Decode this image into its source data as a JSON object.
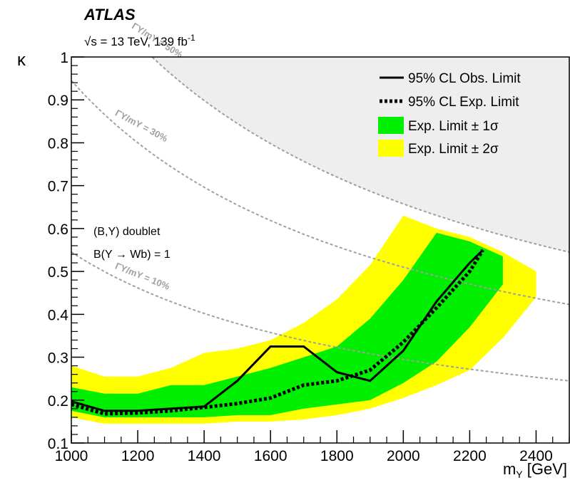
{
  "header": {
    "experiment": "ATLAS",
    "energy_prefix": "√s = 13 TeV, 139 fb",
    "energy_sup": "-1"
  },
  "notes": {
    "line1": "(B,Y) doublet",
    "line2": "B(Y → Wb) = 1"
  },
  "colors": {
    "band_1sigma": "#00ee00",
    "band_2sigma": "#ffff00",
    "excluded_region": "#eeeeee",
    "width_curves": "#a0a0a0"
  },
  "chart_data": {
    "type": "line",
    "xlabel": "m",
    "xlabel_sub": "Y",
    "xlabel_unit": " [GeV]",
    "ylabel": "κ",
    "xlim": [
      1000,
      2500
    ],
    "ylim": [
      0.1,
      1.0
    ],
    "x_ticks": [
      1000,
      1200,
      1400,
      1600,
      1800,
      2000,
      2200,
      2400
    ],
    "x_tick_labels": [
      "1000",
      "1200",
      "1400",
      "1600",
      "1800",
      "2000",
      "2200",
      "2400"
    ],
    "y_ticks": [
      0.1,
      0.2,
      0.3,
      0.4,
      0.5,
      0.6,
      0.7,
      0.8,
      0.9,
      1.0
    ],
    "y_tick_labels": [
      "0.1",
      "0.2",
      "0.3",
      "0.4",
      "0.5",
      "0.6",
      "0.7",
      "0.8",
      "0.9",
      "1"
    ],
    "legend_position": "top-right",
    "legend": [
      {
        "label": "95% CL Obs. Limit",
        "style": "solid-line"
      },
      {
        "label": "95% CL Exp. Limit",
        "style": "dotted-line"
      },
      {
        "label": "Exp. Limit ± 1σ",
        "style": "green-box"
      },
      {
        "label": "Exp. Limit ± 2σ",
        "style": "yellow-box"
      }
    ],
    "observed": {
      "x": [
        1000,
        1100,
        1200,
        1300,
        1400,
        1500,
        1600,
        1700,
        1800,
        1900,
        2000,
        2100,
        2200,
        2240
      ],
      "y": [
        0.197,
        0.175,
        0.175,
        0.18,
        0.185,
        0.245,
        0.325,
        0.325,
        0.265,
        0.245,
        0.315,
        0.43,
        0.52,
        0.55
      ]
    },
    "expected": {
      "x": [
        1000,
        1100,
        1200,
        1300,
        1400,
        1500,
        1600,
        1700,
        1800,
        1900,
        2000,
        2100,
        2200,
        2240
      ],
      "y": [
        0.19,
        0.168,
        0.17,
        0.175,
        0.183,
        0.192,
        0.205,
        0.235,
        0.245,
        0.27,
        0.335,
        0.415,
        0.5,
        0.55
      ]
    },
    "band_1sigma": {
      "x": [
        1000,
        1100,
        1200,
        1300,
        1400,
        1500,
        1600,
        1700,
        1800,
        1900,
        2000,
        2100,
        2200,
        2300
      ],
      "lower": [
        0.175,
        0.16,
        0.16,
        0.16,
        0.16,
        0.165,
        0.165,
        0.18,
        0.19,
        0.2,
        0.24,
        0.29,
        0.37,
        0.47
      ],
      "upper": [
        0.23,
        0.215,
        0.215,
        0.235,
        0.235,
        0.255,
        0.275,
        0.3,
        0.325,
        0.39,
        0.48,
        0.59,
        0.57,
        0.535
      ]
    },
    "band_2sigma": {
      "x": [
        1000,
        1100,
        1200,
        1300,
        1400,
        1500,
        1600,
        1700,
        1800,
        1900,
        2000,
        2100,
        2200,
        2300,
        2400
      ],
      "lower": [
        0.16,
        0.145,
        0.145,
        0.145,
        0.145,
        0.15,
        0.15,
        0.155,
        0.165,
        0.18,
        0.205,
        0.235,
        0.27,
        0.345,
        0.44
      ],
      "upper": [
        0.28,
        0.255,
        0.255,
        0.275,
        0.31,
        0.32,
        0.34,
        0.38,
        0.435,
        0.515,
        0.63,
        0.6,
        0.58,
        0.545,
        0.5
      ]
    },
    "width_curves": [
      {
        "label": "ΓY/mY = 10%",
        "y_at_1000": 0.545,
        "y_at_2500": 0.245
      },
      {
        "label": "ΓY/mY = 30%",
        "y_at_1000": 0.945,
        "y_at_2500": 0.423
      },
      {
        "label": "ΓY/mY = 50%",
        "y_at_1000": 1.22,
        "y_at_2500": 0.545
      }
    ],
    "excluded_region_curve": "ΓY/mY = 50%"
  }
}
